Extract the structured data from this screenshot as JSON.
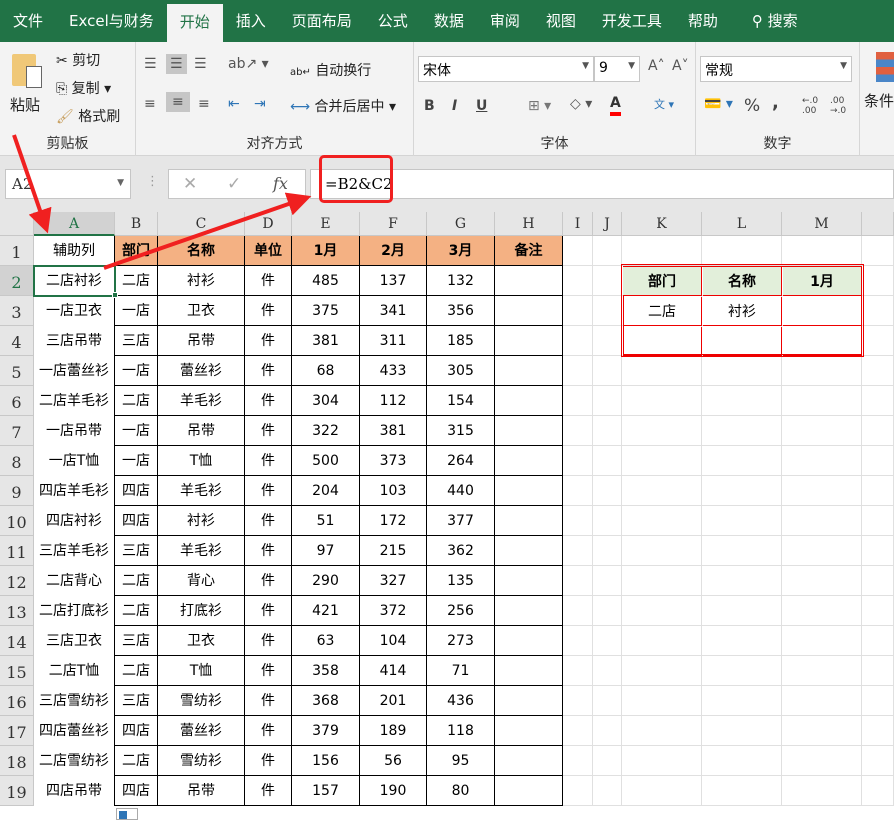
{
  "tabs": [
    "文件",
    "Excel与财务",
    "开始",
    "插入",
    "页面布局",
    "公式",
    "数据",
    "审阅",
    "视图",
    "开发工具",
    "帮助",
    "搜索"
  ],
  "active_tab": "开始",
  "ribbon": {
    "clipboard": {
      "paste": "粘贴",
      "cut": "剪切",
      "copy": "复制",
      "format_painter": "格式刷",
      "label": "剪贴板"
    },
    "alignment": {
      "wrap_text": "自动换行",
      "merge_center": "合并后居中",
      "label": "对齐方式"
    },
    "font": {
      "name": "宋体",
      "size": "9",
      "label": "字体",
      "bold": "B",
      "italic": "I",
      "underline": "U",
      "font_color": "#ff0000"
    },
    "number": {
      "format": "常规",
      "percent": "%",
      "comma": ",",
      "label": "数字"
    },
    "styles": {
      "conditional": "条件"
    }
  },
  "formula_bar": {
    "name_box": "A2",
    "formula": "=B2&C2",
    "fx": "fx"
  },
  "columns": [
    "A",
    "B",
    "C",
    "D",
    "E",
    "F",
    "G",
    "H",
    "I",
    "J",
    "K",
    "L",
    "M"
  ],
  "headers": [
    "辅助列",
    "部门",
    "名称",
    "单位",
    "1月",
    "2月",
    "3月",
    "备注"
  ],
  "rows": [
    [
      "二店衬衫",
      "二店",
      "衬衫",
      "件",
      "485",
      "137",
      "132"
    ],
    [
      "一店卫衣",
      "一店",
      "卫衣",
      "件",
      "375",
      "341",
      "356"
    ],
    [
      "三店吊带",
      "三店",
      "吊带",
      "件",
      "381",
      "311",
      "185"
    ],
    [
      "一店蕾丝衫",
      "一店",
      "蕾丝衫",
      "件",
      "68",
      "433",
      "305"
    ],
    [
      "二店羊毛衫",
      "二店",
      "羊毛衫",
      "件",
      "304",
      "112",
      "154"
    ],
    [
      "一店吊带",
      "一店",
      "吊带",
      "件",
      "322",
      "381",
      "315"
    ],
    [
      "一店T恤",
      "一店",
      "T恤",
      "件",
      "500",
      "373",
      "264"
    ],
    [
      "四店羊毛衫",
      "四店",
      "羊毛衫",
      "件",
      "204",
      "103",
      "440"
    ],
    [
      "四店衬衫",
      "四店",
      "衬衫",
      "件",
      "51",
      "172",
      "377"
    ],
    [
      "三店羊毛衫",
      "三店",
      "羊毛衫",
      "件",
      "97",
      "215",
      "362"
    ],
    [
      "二店背心",
      "二店",
      "背心",
      "件",
      "290",
      "327",
      "135"
    ],
    [
      "二店打底衫",
      "二店",
      "打底衫",
      "件",
      "421",
      "372",
      "256"
    ],
    [
      "三店卫衣",
      "三店",
      "卫衣",
      "件",
      "63",
      "104",
      "273"
    ],
    [
      "二店T恤",
      "二店",
      "T恤",
      "件",
      "358",
      "414",
      "71"
    ],
    [
      "三店雪纺衫",
      "三店",
      "雪纺衫",
      "件",
      "368",
      "201",
      "436"
    ],
    [
      "四店蕾丝衫",
      "四店",
      "蕾丝衫",
      "件",
      "379",
      "189",
      "118"
    ],
    [
      "二店雪纺衫",
      "二店",
      "雪纺衫",
      "件",
      "156",
      "56",
      "95"
    ],
    [
      "四店吊带",
      "四店",
      "吊带",
      "件",
      "157",
      "190",
      "80"
    ]
  ],
  "lookup": {
    "headers": [
      "部门",
      "名称",
      "1月"
    ],
    "values": [
      "二店",
      "衬衫",
      ""
    ]
  },
  "colors": {
    "accent": "#217346",
    "header_fill": "#f4b183",
    "lookup_header_fill": "#e2efda",
    "annotation": "#f02020"
  }
}
